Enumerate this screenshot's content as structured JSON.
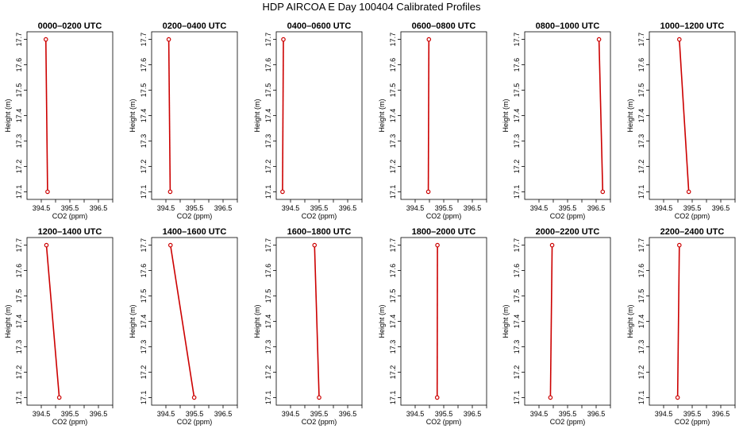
{
  "title": "HDP AIRCOA E  Day 100404  Calibrated Profiles",
  "chart_data": {
    "type": "line",
    "xlabel": "CO2 (ppm)",
    "ylabel": "Height (m)",
    "xlim": [
      394.0,
      397.0
    ],
    "ylim": [
      17.07,
      17.73
    ],
    "x_ticks": [
      394.5,
      395.5,
      396.5
    ],
    "x_minor_ticks": [
      395.0,
      396.0,
      397.0
    ],
    "y_ticks": [
      17.1,
      17.2,
      17.3,
      17.4,
      17.5,
      17.6,
      17.7
    ],
    "grid": false,
    "line_color": "#cc0000",
    "panels": [
      {
        "title": "0000–0200 UTC",
        "points": [
          {
            "x": 394.66,
            "y": 17.7
          },
          {
            "x": 394.72,
            "y": 17.1
          }
        ]
      },
      {
        "title": "0200–0400 UTC",
        "points": [
          {
            "x": 394.6,
            "y": 17.7
          },
          {
            "x": 394.65,
            "y": 17.1
          }
        ]
      },
      {
        "title": "0400–0600 UTC",
        "points": [
          {
            "x": 394.25,
            "y": 17.7
          },
          {
            "x": 394.22,
            "y": 17.1
          }
        ]
      },
      {
        "title": "0600–0800 UTC",
        "points": [
          {
            "x": 394.98,
            "y": 17.7
          },
          {
            "x": 394.96,
            "y": 17.1
          }
        ]
      },
      {
        "title": "0800–1000 UTC",
        "points": [
          {
            "x": 396.6,
            "y": 17.7
          },
          {
            "x": 396.73,
            "y": 17.1
          }
        ]
      },
      {
        "title": "1000–1200 UTC",
        "points": [
          {
            "x": 395.05,
            "y": 17.7
          },
          {
            "x": 395.38,
            "y": 17.1
          }
        ]
      },
      {
        "title": "1200–1400 UTC",
        "points": [
          {
            "x": 394.68,
            "y": 17.7
          },
          {
            "x": 395.13,
            "y": 17.1
          }
        ]
      },
      {
        "title": "1400–1600 UTC",
        "points": [
          {
            "x": 394.66,
            "y": 17.7
          },
          {
            "x": 395.49,
            "y": 17.1
          }
        ]
      },
      {
        "title": "1600–1800 UTC",
        "points": [
          {
            "x": 395.34,
            "y": 17.7
          },
          {
            "x": 395.5,
            "y": 17.1
          }
        ]
      },
      {
        "title": "1800–2000 UTC",
        "points": [
          {
            "x": 395.28,
            "y": 17.7
          },
          {
            "x": 395.27,
            "y": 17.1
          }
        ]
      },
      {
        "title": "2000–2200 UTC",
        "points": [
          {
            "x": 394.96,
            "y": 17.7
          },
          {
            "x": 394.9,
            "y": 17.1
          }
        ]
      },
      {
        "title": "2200–2400 UTC",
        "points": [
          {
            "x": 395.05,
            "y": 17.7
          },
          {
            "x": 394.99,
            "y": 17.1
          }
        ]
      }
    ]
  }
}
